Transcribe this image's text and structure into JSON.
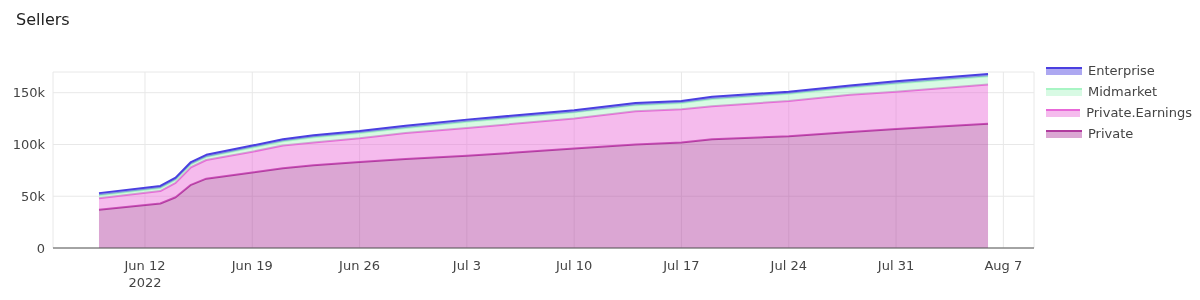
{
  "chart_data": {
    "type": "area",
    "title": "Sellers",
    "stacked": true,
    "grid": true,
    "legend": "top right",
    "x": [
      "2022-06-09",
      "2022-06-13",
      "2022-06-14",
      "2022-06-15",
      "2022-06-16",
      "2022-06-19",
      "2022-06-21",
      "2022-06-23",
      "2022-06-26",
      "2022-06-29",
      "2022-07-03",
      "2022-07-10",
      "2022-07-14",
      "2022-07-17",
      "2022-07-19",
      "2022-07-24",
      "2022-07-28",
      "2022-07-31",
      "2022-08-06"
    ],
    "xlim": [
      "2022-06-06",
      "2022-08-09"
    ],
    "xticks": [
      {
        "value": "2022-06-12",
        "label": "Jun 12\n2022"
      },
      {
        "value": "2022-06-19",
        "label": "Jun 19"
      },
      {
        "value": "2022-06-26",
        "label": "Jun 26"
      },
      {
        "value": "2022-07-03",
        "label": "Jul 3"
      },
      {
        "value": "2022-07-10",
        "label": "Jul 10"
      },
      {
        "value": "2022-07-17",
        "label": "Jul 17"
      },
      {
        "value": "2022-07-24",
        "label": "Jul 24"
      },
      {
        "value": "2022-07-31",
        "label": "Jul 31"
      },
      {
        "value": "2022-08-07",
        "label": "Aug 7"
      }
    ],
    "ylim": [
      0,
      170000
    ],
    "yticks": [
      0,
      {
        "value": 50000,
        "label": "50k"
      },
      {
        "value": 100000,
        "label": "100k"
      },
      {
        "value": 150000,
        "label": "150k"
      }
    ],
    "series": [
      {
        "name": "Private",
        "color": "#b03a9e",
        "values": [
          37000,
          43000,
          49000,
          61000,
          67000,
          73000,
          77000,
          80000,
          83000,
          86000,
          89000,
          96000,
          100000,
          102000,
          105000,
          108000,
          112000,
          115000,
          120000
        ]
      },
      {
        "name": "Private.Earnings",
        "color": "#e868d8",
        "values": [
          11000,
          12000,
          14000,
          17000,
          18000,
          20000,
          22000,
          22000,
          23000,
          25000,
          27000,
          29000,
          32000,
          32000,
          32000,
          34000,
          36000,
          36000,
          38000
        ]
      },
      {
        "name": "Midmarket",
        "color": "#a8f5c4",
        "values": [
          3000,
          3000,
          3000,
          3000,
          3000,
          4000,
          4000,
          5000,
          5000,
          5000,
          6000,
          6000,
          6000,
          6000,
          7000,
          7000,
          7000,
          8000,
          8000
        ]
      },
      {
        "name": "Enterprise",
        "color": "#4a3fe0",
        "values": [
          2000,
          2000,
          2000,
          2000,
          2000,
          2000,
          2000,
          2000,
          2000,
          2000,
          2000,
          2000,
          2000,
          2000,
          2000,
          2000,
          2000,
          2000,
          2000
        ]
      }
    ]
  }
}
